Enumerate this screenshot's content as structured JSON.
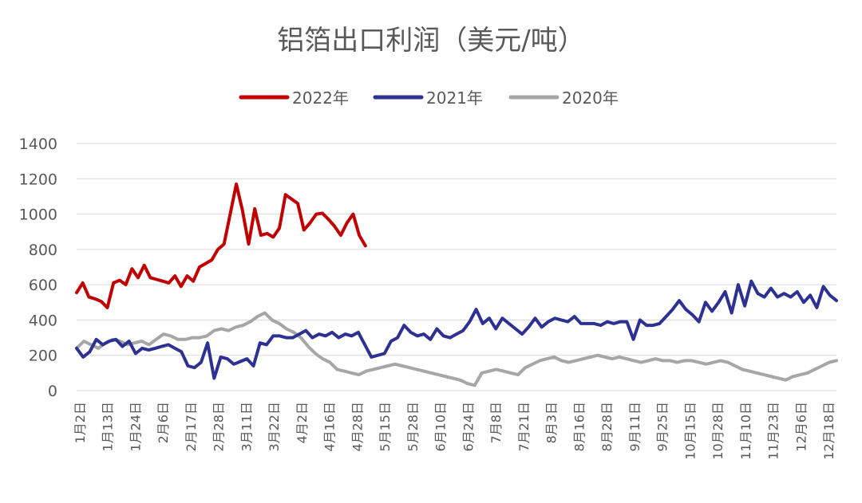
{
  "chart_data": {
    "type": "line",
    "title": "铝箔出口利润（美元/吨）",
    "xlabel": "",
    "ylabel": "",
    "ylim": [
      0,
      1400
    ],
    "yticks": [
      0,
      200,
      400,
      600,
      800,
      1000,
      1200,
      1400
    ],
    "grid": true,
    "legend_position": "top",
    "x_tick_labels": [
      "1月2日",
      "1月13日",
      "1月24日",
      "2月6日",
      "2月17日",
      "2月28日",
      "3月11日",
      "3月22日",
      "4月2日",
      "4月16日",
      "4月28日",
      "5月15日",
      "5月28日",
      "6月10日",
      "6月24日",
      "7月8日",
      "7月21日",
      "8月3日",
      "8月16日",
      "8月28日",
      "9月11日",
      "9月25日",
      "10月15日",
      "10月28日",
      "11月10日",
      "11月23日",
      "12月6日",
      "12月18日"
    ],
    "series": [
      {
        "name": "2022年",
        "color": "#c00000",
        "values": [
          555,
          610,
          530,
          520,
          505,
          470,
          610,
          625,
          600,
          690,
          640,
          710,
          640,
          630,
          620,
          610,
          650,
          590,
          650,
          620,
          700,
          720,
          740,
          800,
          830,
          1000,
          1170,
          1020,
          830,
          1030,
          880,
          890,
          870,
          920,
          1110,
          1085,
          1060,
          910,
          950,
          1000,
          1005,
          970,
          930,
          880,
          950,
          1000,
          880,
          820
        ]
      },
      {
        "name": "2021年",
        "color": "#2e3192",
        "values": [
          240,
          190,
          220,
          290,
          260,
          280,
          290,
          250,
          280,
          210,
          240,
          230,
          240,
          250,
          260,
          240,
          220,
          140,
          130,
          160,
          270,
          70,
          190,
          180,
          150,
          165,
          180,
          140,
          270,
          260,
          310,
          310,
          300,
          300,
          320,
          340,
          300,
          320,
          310,
          330,
          300,
          320,
          310,
          330,
          260,
          190,
          200,
          210,
          280,
          300,
          370,
          330,
          310,
          320,
          290,
          350,
          310,
          300,
          320,
          340,
          390,
          460,
          380,
          410,
          350,
          410,
          380,
          350,
          320,
          360,
          410,
          360,
          390,
          410,
          400,
          390,
          420,
          380,
          380,
          380,
          370,
          390,
          380,
          390,
          390,
          290,
          400,
          370,
          370,
          380,
          420,
          460,
          510,
          460,
          430,
          390,
          500,
          450,
          500,
          560,
          440,
          600,
          480,
          620,
          550,
          530,
          580,
          530,
          550,
          530,
          560,
          500,
          540,
          470,
          590,
          540,
          510
        ]
      },
      {
        "name": "2020年",
        "color": "#a6a6a6",
        "values": [
          240,
          280,
          260,
          240,
          270,
          290,
          280,
          260,
          270,
          280,
          260,
          290,
          320,
          310,
          290,
          290,
          300,
          300,
          310,
          340,
          350,
          340,
          360,
          370,
          390,
          420,
          440,
          400,
          380,
          350,
          330,
          300,
          250,
          210,
          180,
          160,
          120,
          110,
          100,
          90,
          110,
          120,
          130,
          140,
          150,
          140,
          130,
          120,
          110,
          100,
          90,
          80,
          70,
          60,
          40,
          30,
          100,
          110,
          120,
          110,
          100,
          90,
          130,
          150,
          170,
          180,
          190,
          170,
          160,
          170,
          180,
          190,
          200,
          190,
          180,
          190,
          180,
          170,
          160,
          170,
          180,
          170,
          170,
          160,
          170,
          170,
          160,
          150,
          160,
          170,
          160,
          140,
          120,
          110,
          100,
          90,
          80,
          70,
          60,
          80,
          90,
          100,
          120,
          140,
          160,
          170
        ]
      }
    ]
  }
}
